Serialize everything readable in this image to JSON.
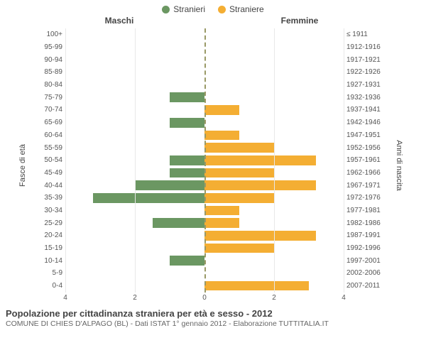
{
  "legend": {
    "male": {
      "label": "Stranieri",
      "color": "#6b9762"
    },
    "female": {
      "label": "Straniere",
      "color": "#f4ae33"
    }
  },
  "headers": {
    "left": "Maschi",
    "right": "Femmine"
  },
  "axis_labels": {
    "left": "Fasce di età",
    "right": "Anni di nascita"
  },
  "chart": {
    "type": "population-pyramid",
    "xmax": 4,
    "xticks": [
      4,
      2,
      0,
      2,
      4
    ],
    "background_color": "#ffffff",
    "grid_color": "#e8e8e8",
    "center_line_color": "#999966",
    "rows": [
      {
        "age": "100+",
        "birth": "≤ 1911",
        "m": 0,
        "f": 0
      },
      {
        "age": "95-99",
        "birth": "1912-1916",
        "m": 0,
        "f": 0
      },
      {
        "age": "90-94",
        "birth": "1917-1921",
        "m": 0,
        "f": 0
      },
      {
        "age": "85-89",
        "birth": "1922-1926",
        "m": 0,
        "f": 0
      },
      {
        "age": "80-84",
        "birth": "1927-1931",
        "m": 0,
        "f": 0
      },
      {
        "age": "75-79",
        "birth": "1932-1936",
        "m": 1,
        "f": 0
      },
      {
        "age": "70-74",
        "birth": "1937-1941",
        "m": 0,
        "f": 1
      },
      {
        "age": "65-69",
        "birth": "1942-1946",
        "m": 1,
        "f": 0
      },
      {
        "age": "60-64",
        "birth": "1947-1951",
        "m": 0,
        "f": 1
      },
      {
        "age": "55-59",
        "birth": "1952-1956",
        "m": 0,
        "f": 2
      },
      {
        "age": "50-54",
        "birth": "1957-1961",
        "m": 1,
        "f": 3.2
      },
      {
        "age": "45-49",
        "birth": "1962-1966",
        "m": 1,
        "f": 2
      },
      {
        "age": "40-44",
        "birth": "1967-1971",
        "m": 2,
        "f": 3.2
      },
      {
        "age": "35-39",
        "birth": "1972-1976",
        "m": 3.2,
        "f": 2
      },
      {
        "age": "30-34",
        "birth": "1977-1981",
        "m": 0,
        "f": 1
      },
      {
        "age": "25-29",
        "birth": "1982-1986",
        "m": 1.5,
        "f": 1
      },
      {
        "age": "20-24",
        "birth": "1987-1991",
        "m": 0,
        "f": 3.2
      },
      {
        "age": "15-19",
        "birth": "1992-1996",
        "m": 0,
        "f": 2
      },
      {
        "age": "10-14",
        "birth": "1997-2001",
        "m": 1,
        "f": 0
      },
      {
        "age": "5-9",
        "birth": "2002-2006",
        "m": 0,
        "f": 0
      },
      {
        "age": "0-4",
        "birth": "2007-2011",
        "m": 0,
        "f": 3
      }
    ]
  },
  "title": "Popolazione per cittadinanza straniera per età e sesso - 2012",
  "subtitle": "COMUNE DI CHIES D'ALPAGO (BL) - Dati ISTAT 1° gennaio 2012 - Elaborazione TUTTITALIA.IT"
}
